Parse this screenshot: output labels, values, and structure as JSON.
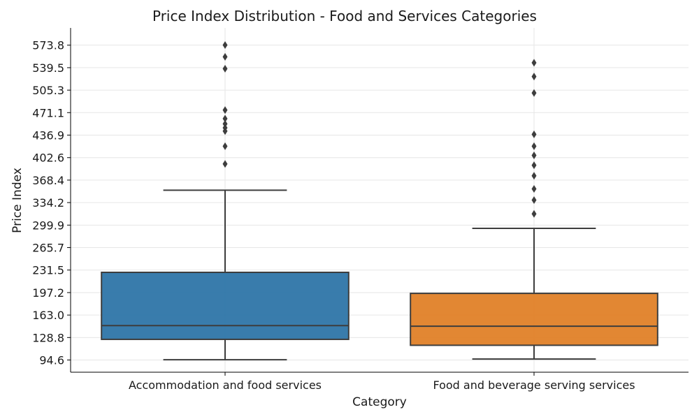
{
  "chart_data": {
    "type": "box",
    "title": "Price Index Distribution - Food and Services Categories",
    "xlabel": "Category",
    "ylabel": "Price Index",
    "ylim": [
      76,
      600
    ],
    "yticks": [
      "94.6",
      "128.8",
      "163.0",
      "197.2",
      "231.5",
      "265.7",
      "299.9",
      "334.2",
      "368.4",
      "402.6",
      "436.9",
      "471.1",
      "505.3",
      "539.5",
      "573.8"
    ],
    "grid": true,
    "categories": [
      "Accommodation and food services",
      "Food and beverage serving services"
    ],
    "boxes": [
      {
        "category": "Accommodation and food services",
        "color": "#2e75a8",
        "whisker_low": 95.0,
        "q1": 126.0,
        "median": 147.0,
        "q3": 228.0,
        "whisker_high": 353.0,
        "outliers": [
          574.0,
          556.0,
          538.0,
          475.0,
          462.0,
          454.0,
          448.0,
          443.0,
          420.0,
          393.0
        ]
      },
      {
        "category": "Food and beverage serving services",
        "color": "#e08128",
        "whisker_low": 96.0,
        "q1": 117.0,
        "median": 146.0,
        "q3": 196.0,
        "whisker_high": 295.0,
        "outliers": [
          547.0,
          526.0,
          501.0,
          438.0,
          420.0,
          406.0,
          391.0,
          375.0,
          355.0,
          338.0,
          317.0
        ]
      }
    ]
  }
}
